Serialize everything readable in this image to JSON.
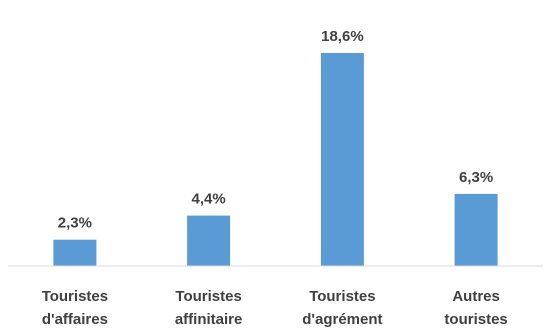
{
  "chart_data": {
    "type": "bar",
    "categories": [
      [
        "Touristes",
        "d'affaires"
      ],
      [
        "Touristes",
        "affinitaire"
      ],
      [
        "Touristes",
        "d'agrément"
      ],
      [
        "Autres",
        "touristes"
      ]
    ],
    "values": [
      2.3,
      4.4,
      18.6,
      6.3
    ],
    "data_labels": [
      "2,3%",
      "4,4%",
      "18,6%",
      "6,3%"
    ],
    "title": "",
    "xlabel": "",
    "ylabel": "",
    "ylim": [
      0,
      20
    ],
    "grid": false,
    "legend": "none",
    "bar_color": "#5B9BD5",
    "axis_color": "#D9D9D9",
    "text_color": "#404040"
  }
}
